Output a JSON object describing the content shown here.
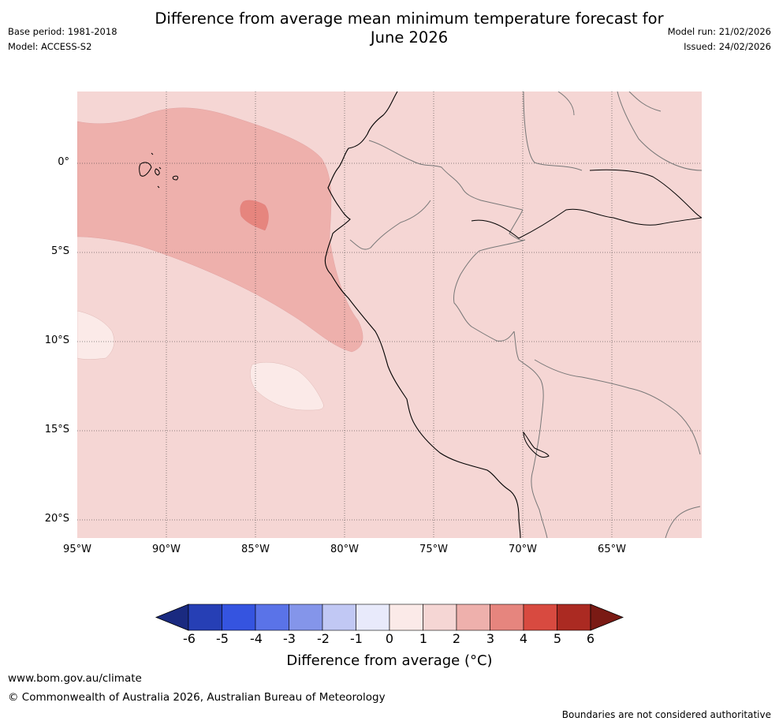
{
  "header": {
    "title_line1": "Difference from average mean minimum temperature forecast for",
    "title_line2": "June 2026",
    "base_period": "Base period: 1981-2018",
    "model": "Model: ACCESS-S2",
    "model_run": "Model run: 21/02/2026",
    "issued": "Issued: 24/02/2026"
  },
  "map": {
    "lat_labels": [
      "0°",
      "5°S",
      "10°S",
      "15°S",
      "20°S"
    ],
    "lon_labels": [
      "95°W",
      "90°W",
      "85°W",
      "80°W",
      "75°W",
      "70°W",
      "65°W"
    ],
    "background_color": "#f5d6d4"
  },
  "colorbar": {
    "ticks": [
      "-6",
      "-5",
      "-4",
      "-3",
      "-2",
      "-1",
      "0",
      "1",
      "2",
      "3",
      "4",
      "5",
      "6"
    ],
    "colors": [
      "#1a2a80",
      "#263fb5",
      "#3554e0",
      "#5a73e8",
      "#8495ea",
      "#c1c8f4",
      "#e8eafb",
      "#fbeae8",
      "#f5d6d4",
      "#eeb0ac",
      "#e6857e",
      "#d84a40",
      "#ab2a22",
      "#7a1a14"
    ],
    "label": "Difference from average ($^\\circ$C)",
    "label_display": "Difference from average (°C)"
  },
  "footer": {
    "url": "www.bom.gov.au/climate",
    "copyright": "© Commonwealth of Australia 2026, Australian Bureau of Meteorology",
    "disclaimer": "Boundaries are not considered authoritative"
  }
}
